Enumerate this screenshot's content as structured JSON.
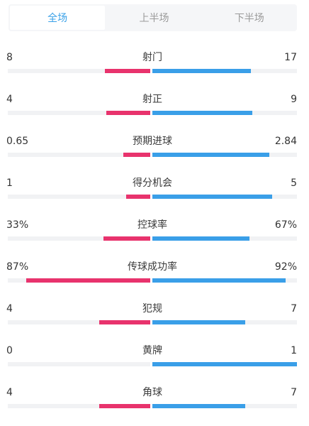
{
  "tabs": [
    "全场",
    "上半场",
    "下半场"
  ],
  "active_tab": 0,
  "colors": {
    "home": "#e8336d",
    "away": "#3a9fe8",
    "accent": "#3aa1e8"
  },
  "stats": [
    {
      "label": "射门",
      "home": "8",
      "away": "17",
      "home_share": 0.32,
      "away_share": 0.68
    },
    {
      "label": "射正",
      "home": "4",
      "away": "9",
      "home_share": 0.31,
      "away_share": 0.69
    },
    {
      "label": "预期进球",
      "home": "0.65",
      "away": "2.84",
      "home_share": 0.19,
      "away_share": 0.81
    },
    {
      "label": "得分机会",
      "home": "1",
      "away": "5",
      "home_share": 0.17,
      "away_share": 0.83
    },
    {
      "label": "控球率",
      "home": "33%",
      "away": "67%",
      "home_share": 0.33,
      "away_share": 0.67
    },
    {
      "label": "传球成功率",
      "home": "87%",
      "away": "92%",
      "home_share": 0.87,
      "away_share": 0.92
    },
    {
      "label": "犯规",
      "home": "4",
      "away": "7",
      "home_share": 0.36,
      "away_share": 0.64
    },
    {
      "label": "黄牌",
      "home": "0",
      "away": "1",
      "home_share": 0.0,
      "away_share": 1.0
    },
    {
      "label": "角球",
      "home": "4",
      "away": "7",
      "home_share": 0.36,
      "away_share": 0.64
    }
  ]
}
